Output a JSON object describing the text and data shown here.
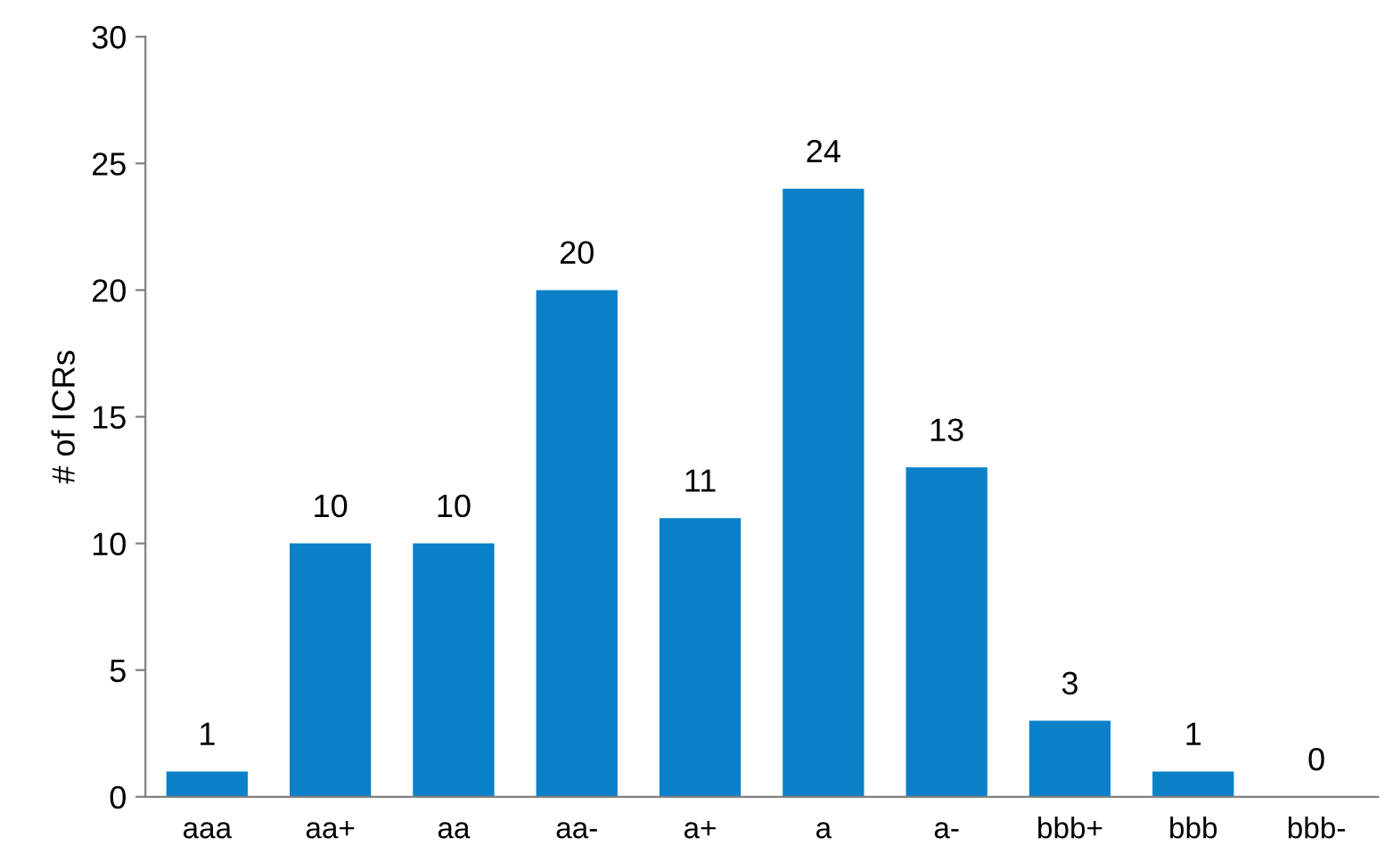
{
  "chart_data": {
    "type": "bar",
    "ylabel": "# of ICRs",
    "categories": [
      "aaa",
      "aa+",
      "aa",
      "aa-",
      "a+",
      "a",
      "a-",
      "bbb+",
      "bbb",
      "bbb-"
    ],
    "values": [
      1,
      10,
      10,
      20,
      11,
      24,
      13,
      3,
      1,
      0
    ],
    "color": "#0a80c8",
    "ylim": [
      0,
      30
    ],
    "yticks": [
      0,
      5,
      10,
      15,
      20,
      25,
      30
    ],
    "grid": false,
    "data_labels": true
  }
}
